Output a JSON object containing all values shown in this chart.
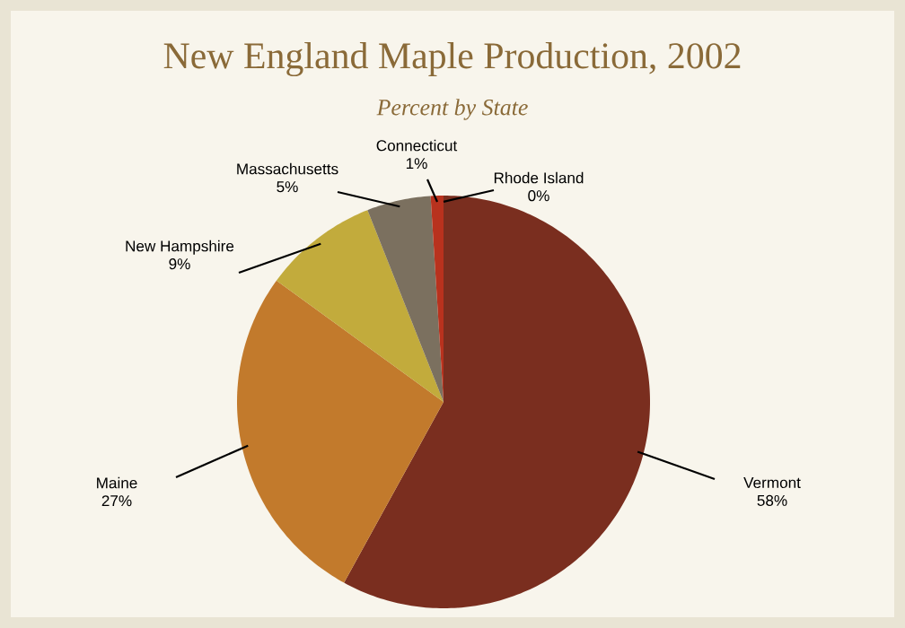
{
  "chart_data": {
    "type": "pie",
    "title": "New England Maple Production, 2002",
    "subtitle": "Percent by State",
    "categories": [
      "Vermont",
      "Maine",
      "New Hampshire",
      "Massachusetts",
      "Connecticut",
      "Rhode Island"
    ],
    "values": [
      58,
      27,
      9,
      5,
      1,
      0
    ],
    "value_labels": [
      "58%",
      "27%",
      "9%",
      "5%",
      "1%",
      "0%"
    ],
    "colors": [
      "#7a2e1f",
      "#c27a2c",
      "#c2ab3c",
      "#7b705f",
      "#b8321e",
      "#d0562a"
    ]
  }
}
